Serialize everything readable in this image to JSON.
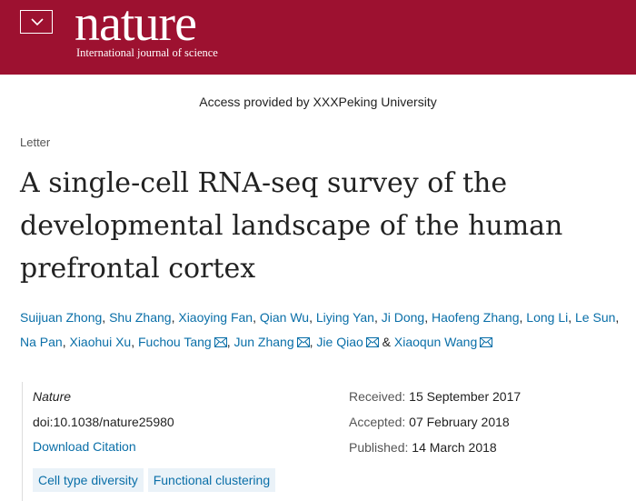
{
  "header": {
    "logo": "nature",
    "tagline": "International journal of science"
  },
  "access": "Access provided by XXXPeking University",
  "article": {
    "type": "Letter",
    "title": "A single-cell RNA-seq survey of the developmental landscape of the human prefrontal cortex",
    "authors": [
      {
        "name": "Suijuan Zhong",
        "suffix": ","
      },
      {
        "name": "Shu Zhang",
        "suffix": ","
      },
      {
        "name": "Xiaoying Fan",
        "suffix": ","
      },
      {
        "name": "Qian Wu",
        "suffix": ","
      },
      {
        "name": "Liying Yan",
        "suffix": ","
      },
      {
        "name": "Ji Dong",
        "suffix": ","
      },
      {
        "name": "Haofeng Zhang",
        "suffix": ","
      },
      {
        "name": "Long Li",
        "suffix": ","
      },
      {
        "name": "Le Sun",
        "suffix": ","
      },
      {
        "name": "Na Pan",
        "suffix": ","
      },
      {
        "name": "Xiaohui Xu",
        "suffix": ","
      },
      {
        "name": "Fuchou Tang",
        "mail": true,
        "suffix": ","
      },
      {
        "name": "Jun Zhang",
        "mail": true,
        "suffix": ","
      },
      {
        "name": "Jie Qiao",
        "mail": true,
        "suffix": "&"
      },
      {
        "name": "Xiaoqun Wang",
        "mail": true
      }
    ],
    "journal": "Nature",
    "doi": "doi:10.1038/nature25980",
    "citation_link": "Download Citation",
    "tags": [
      "Cell type diversity",
      "Functional clustering"
    ],
    "dates": [
      {
        "label": "Received:",
        "value": "15 September 2017"
      },
      {
        "label": "Accepted:",
        "value": "07 February 2018"
      },
      {
        "label": "Published:",
        "value": "14 March 2018"
      }
    ]
  }
}
